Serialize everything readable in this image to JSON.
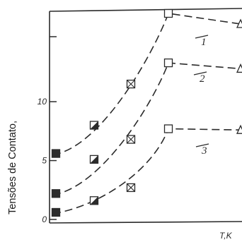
{
  "chart_data": {
    "type": "line",
    "title": "",
    "xlabel": "T,K",
    "ylabel": "Tensões de Contato,",
    "ylim": [
      0,
      17.5
    ],
    "yticks": [
      0,
      5,
      10
    ],
    "grid": false,
    "line_style": "dashed",
    "series": [
      {
        "name": "1",
        "color": "#2b2b2b",
        "points": [
          {
            "x": 1,
            "y": 5.6,
            "marker": "filled-square"
          },
          {
            "x": 2,
            "y": 8.0,
            "marker": "half-filled-square"
          },
          {
            "x": 3,
            "y": 11.5,
            "marker": "crossed-square"
          },
          {
            "x": 4,
            "y": 17.5,
            "marker": "open-square"
          },
          {
            "x": 5,
            "y": 16.6,
            "marker": "open-triangle"
          }
        ]
      },
      {
        "name": "2",
        "color": "#2b2b2b",
        "points": [
          {
            "x": 1,
            "y": 2.2,
            "marker": "filled-square"
          },
          {
            "x": 2,
            "y": 5.1,
            "marker": "half-filled-square"
          },
          {
            "x": 3,
            "y": 6.8,
            "marker": "crossed-square"
          },
          {
            "x": 4,
            "y": 13.3,
            "marker": "open-square"
          },
          {
            "x": 5,
            "y": 12.8,
            "marker": "open-triangle"
          }
        ]
      },
      {
        "name": "3",
        "color": "#2b2b2b",
        "points": [
          {
            "x": 1,
            "y": 0.6,
            "marker": "filled-square"
          },
          {
            "x": 2,
            "y": 1.6,
            "marker": "half-filled-square"
          },
          {
            "x": 3,
            "y": 2.7,
            "marker": "crossed-square"
          },
          {
            "x": 4,
            "y": 7.7,
            "marker": "open-square"
          },
          {
            "x": 5,
            "y": 7.6,
            "marker": "open-triangle"
          }
        ]
      }
    ]
  }
}
